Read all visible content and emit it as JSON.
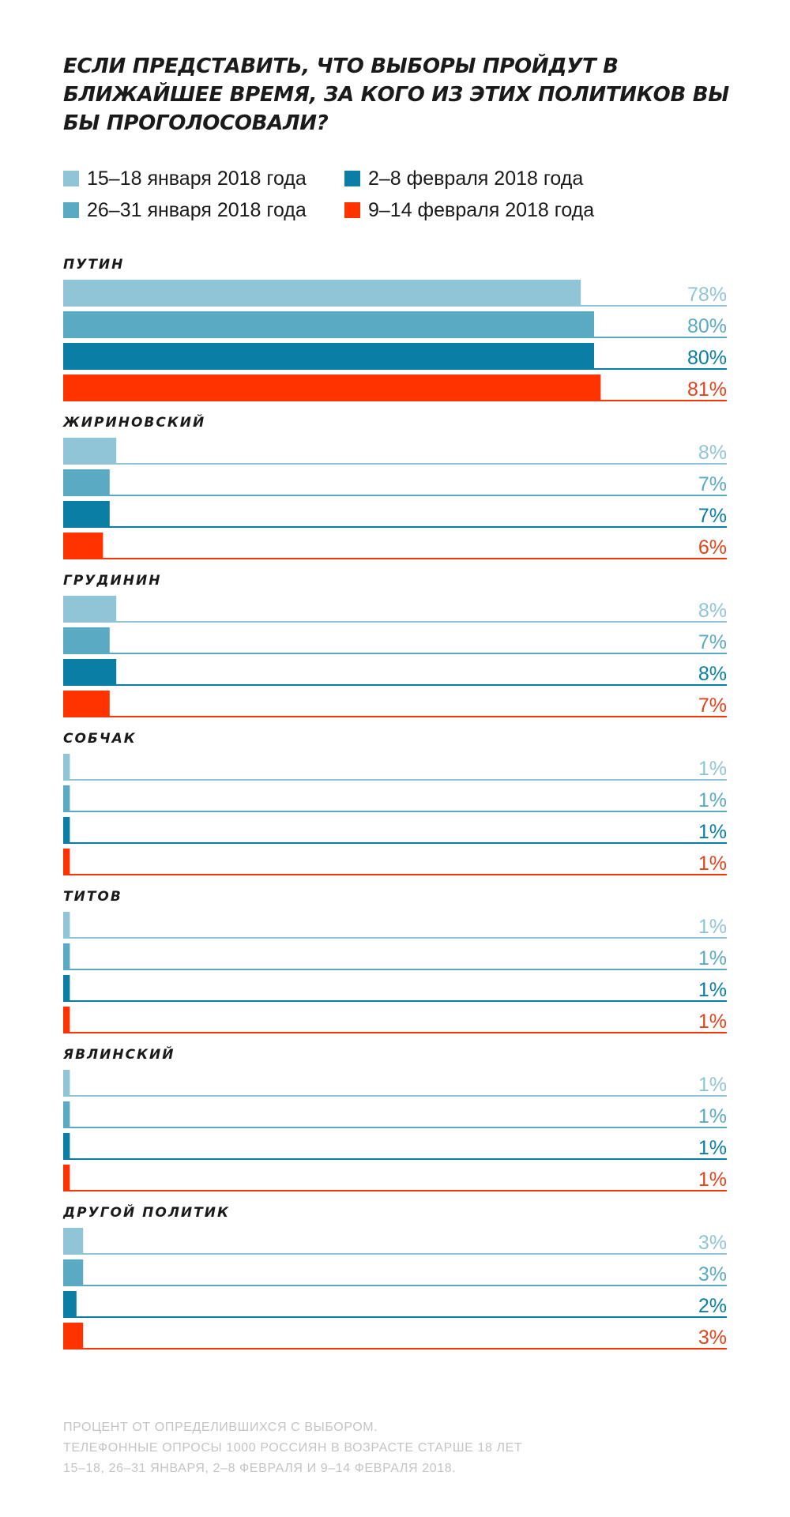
{
  "title": "ЕСЛИ ПРЕДСТАВИТЬ, ЧТО ВЫБОРЫ ПРОЙДУТ В БЛИЖАЙШЕЕ ВРЕМЯ, ЗА КОГО ИЗ ЭТИХ ПОЛИТИКОВ ВЫ БЫ ПРОГОЛОСОВАЛИ?",
  "legend": [
    {
      "label": "15–18 января 2018 года",
      "color": "#8fc5d6"
    },
    {
      "label": "26–31 января 2018 года",
      "color": "#5aaac4"
    },
    {
      "label": "2–8 февраля 2018 года",
      "color": "#0a7ea4"
    },
    {
      "label": "9–14 февраля 2018 года",
      "color": "#ff3300"
    }
  ],
  "footnote": [
    "ПРОЦЕНТ ОТ ОПРЕДЕЛИВШИХСЯ С ВЫБОРОМ.",
    "ТЕЛЕФОННЫЕ ОПРОСЫ 1000 РОССИЯН В ВОЗРАСТЕ СТАРШЕ 18 ЛЕТ",
    "15–18, 26–31 ЯНВАРЯ, 2–8 ФЕВРАЛЯ И 9–14 ФЕВРАЛЯ 2018."
  ],
  "chart_data": {
    "type": "bar",
    "orientation": "horizontal",
    "categories": [
      "ПУТИН",
      "ЖИРИНОВСКИЙ",
      "ГРУДИНИН",
      "СОБЧАК",
      "ТИТОВ",
      "ЯВЛИНСКИЙ",
      "ДРУГОЙ ПОЛИТИК"
    ],
    "series": [
      {
        "name": "15–18 января 2018 года",
        "color": "#8fc5d6",
        "values": [
          78,
          8,
          8,
          1,
          1,
          1,
          3
        ],
        "labels": [
          "78%",
          "8%",
          "8%",
          "1%",
          "1%",
          "1%",
          "3%"
        ]
      },
      {
        "name": "26–31 января 2018 года",
        "color": "#5aaac4",
        "values": [
          80,
          7,
          7,
          1,
          1,
          1,
          3
        ],
        "labels": [
          "80%",
          "7%",
          "7%",
          "1%",
          "1%",
          "1%",
          "3%"
        ]
      },
      {
        "name": "2–8 февраля 2018 года",
        "color": "#0a7ea4",
        "values": [
          80,
          7,
          8,
          1,
          1,
          1,
          2
        ],
        "labels": [
          "80%",
          "7%",
          "8%",
          "1%",
          "1%",
          "1%",
          "2%"
        ]
      },
      {
        "name": "9–14 февраля 2018 года",
        "color": "#ff3300",
        "values": [
          81,
          6,
          7,
          1,
          1,
          1,
          3
        ],
        "labels": [
          "81%",
          "6%",
          "7%",
          "1%",
          "1%",
          "1%",
          "3%"
        ]
      }
    ],
    "value_unit": "%",
    "xlim": [
      0,
      100
    ],
    "grid": false,
    "legend_position": "top-left"
  }
}
